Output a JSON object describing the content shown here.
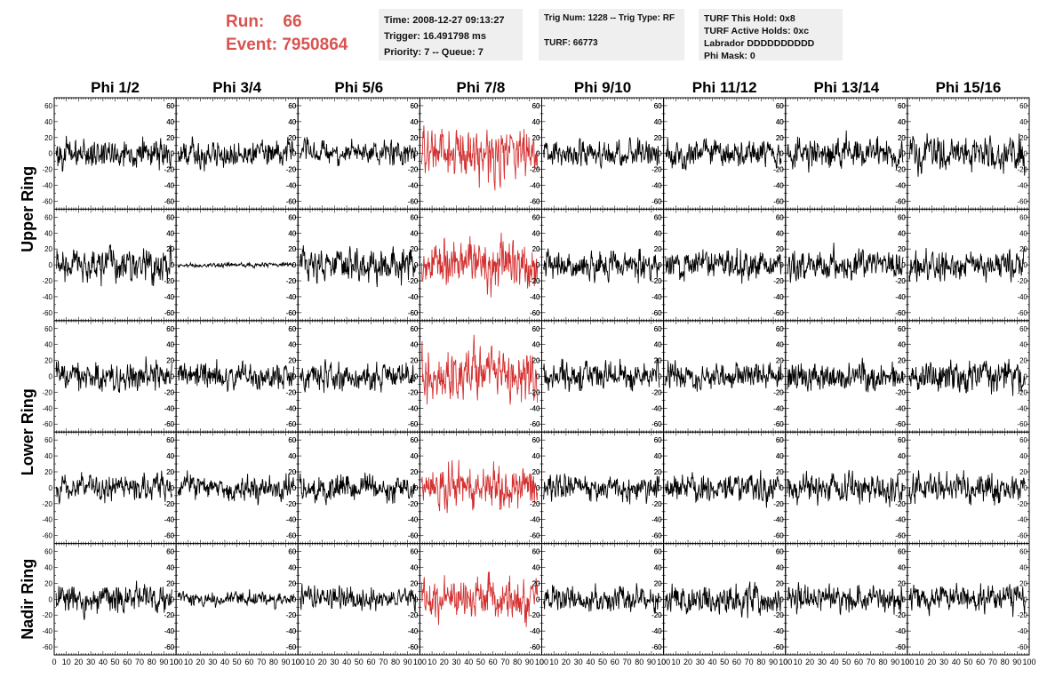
{
  "header": {
    "run_label": "Run:",
    "run_value": "66",
    "event_label": "Event:",
    "event_value": "7950864",
    "time": "Time: 2008-12-27 09:13:27",
    "trigger": "Trigger: 16.491798 ms",
    "priority": "Priority: 7 -- Queue: 7",
    "trig_num": "Trig Num: 1228 -- Trig Type: RF",
    "turf": "TURF: 66773",
    "turf_hold": "TURF This Hold: 0x8",
    "turf_active": "TURF Active Holds: 0xc",
    "labrador": "Labrador DDDDDDDDDD",
    "phi_mask": "Phi Mask: 0"
  },
  "chart_data": {
    "type": "line",
    "columns": [
      "Phi 1/2",
      "Phi 3/4",
      "Phi 5/6",
      "Phi 7/8",
      "Phi 9/10",
      "Phi 11/12",
      "Phi 13/14",
      "Phi 15/16"
    ],
    "row_labels": [
      "Upper Ring",
      "Lower Ring",
      "Nadir Ring"
    ],
    "row_count": 5,
    "upper_ring_rows": 2,
    "lower_ring_rows": 2,
    "nadir_ring_rows": 1,
    "xlim": [
      0,
      100
    ],
    "ylim": [
      -70,
      70
    ],
    "x_ticks": [
      "0",
      "10",
      "20",
      "30",
      "40",
      "50",
      "60",
      "70",
      "80",
      "90",
      "100"
    ],
    "y_ticks": [
      "60",
      "40",
      "20",
      "0",
      "-20",
      "-40",
      "-60"
    ],
    "highlight_column": 3,
    "colors": {
      "trace": "#000000",
      "highlight": "#d32f2f",
      "accent": "#d9534f",
      "panel": "#efefef"
    },
    "amplitudes": [
      [
        12,
        11,
        10,
        20,
        11,
        12,
        12,
        14
      ],
      [
        14,
        2,
        14,
        20,
        12,
        12,
        12,
        12
      ],
      [
        12,
        11,
        11,
        20,
        12,
        11,
        12,
        13
      ],
      [
        11,
        11,
        11,
        18,
        11,
        12,
        12,
        12
      ],
      [
        11,
        6,
        10,
        18,
        11,
        12,
        11,
        12
      ]
    ],
    "seeds": [
      [
        101,
        102,
        103,
        104,
        105,
        106,
        107,
        108
      ],
      [
        201,
        202,
        203,
        204,
        205,
        206,
        207,
        208
      ],
      [
        301,
        302,
        303,
        304,
        305,
        306,
        307,
        308
      ],
      [
        401,
        402,
        403,
        404,
        405,
        406,
        407,
        408
      ],
      [
        501,
        502,
        503,
        504,
        505,
        506,
        507,
        508
      ]
    ]
  }
}
